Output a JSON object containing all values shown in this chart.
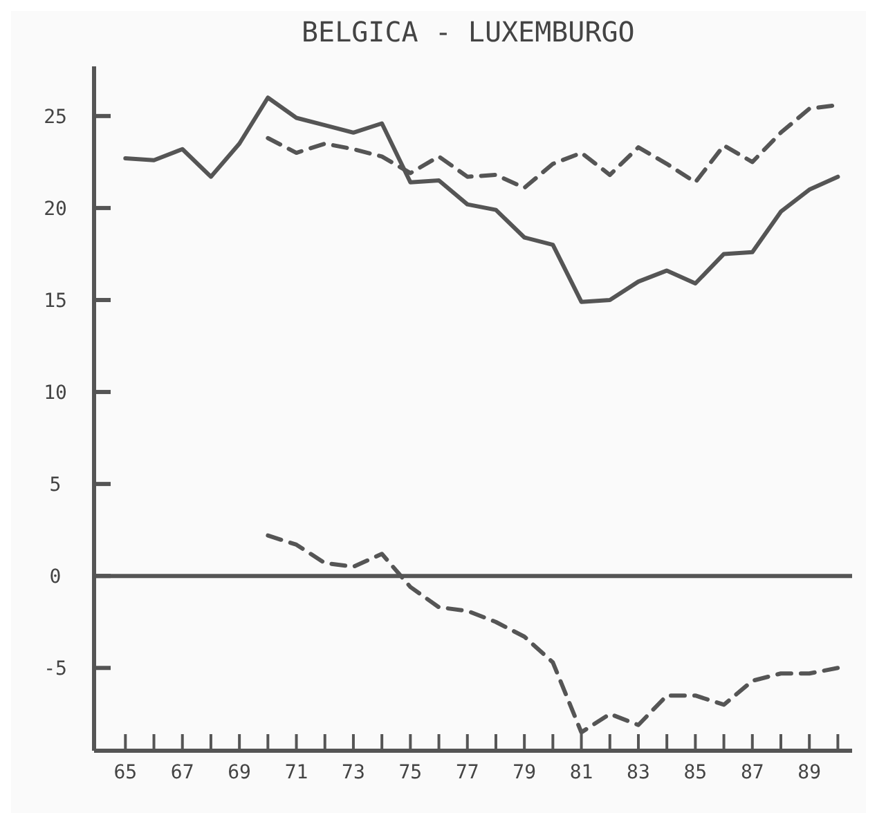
{
  "chart_data": {
    "type": "line",
    "title": "BELGICA - LUXEMBURGO",
    "x": [
      65,
      66,
      67,
      68,
      69,
      70,
      71,
      72,
      73,
      74,
      75,
      76,
      77,
      78,
      79,
      80,
      81,
      82,
      83,
      84,
      85,
      86,
      87,
      88,
      89,
      90
    ],
    "series": [
      {
        "color": "#555555",
        "line_style": "solid",
        "values": [
          22.7,
          22.6,
          23.2,
          21.7,
          23.5,
          26.0,
          24.9,
          24.5,
          24.1,
          24.6,
          21.4,
          21.5,
          20.2,
          19.9,
          18.4,
          18.0,
          14.9,
          15.0,
          16.0,
          16.6,
          15.9,
          17.5,
          17.6,
          19.8,
          21.0,
          21.7
        ]
      },
      {
        "color": "#555555",
        "line_style": "dashed",
        "values": [
          null,
          null,
          null,
          null,
          null,
          23.8,
          23.0,
          23.5,
          23.2,
          22.8,
          21.9,
          22.8,
          21.7,
          21.8,
          21.1,
          22.4,
          23.0,
          21.8,
          23.3,
          22.4,
          21.4,
          23.4,
          22.5,
          24.1,
          25.4,
          25.6
        ]
      },
      {
        "color": "#555555",
        "line_style": "dashed",
        "values": [
          null,
          null,
          null,
          null,
          null,
          2.2,
          1.7,
          0.7,
          0.5,
          1.2,
          -0.6,
          -1.7,
          -1.9,
          -2.5,
          -3.3,
          -4.7,
          -8.5,
          -7.5,
          -8.1,
          -6.5,
          -6.5,
          -7.0,
          -5.7,
          -5.3,
          -5.3,
          -5.0
        ]
      }
    ],
    "xlim": [
      63.9,
      90.5
    ],
    "xticks": [
      65,
      {
        "value": 66,
        "label": null
      },
      67,
      {
        "value": 68,
        "label": null
      },
      69,
      {
        "value": 70,
        "label": null
      },
      71,
      {
        "value": 72,
        "label": null
      },
      73,
      {
        "value": 74,
        "label": null
      },
      75,
      {
        "value": 76,
        "label": null
      },
      77,
      {
        "value": 78,
        "label": null
      },
      79,
      {
        "value": 80,
        "label": null
      },
      81,
      {
        "value": 82,
        "label": null
      },
      83,
      {
        "value": 84,
        "label": null
      },
      85,
      {
        "value": 86,
        "label": null
      },
      87,
      {
        "value": 88,
        "label": null
      },
      89,
      {
        "value": 90,
        "label": null
      }
    ],
    "ylim": [
      -9.5,
      27.7
    ],
    "yticks": [
      -5,
      0,
      5,
      10,
      15,
      20,
      25
    ],
    "ref_lines": [
      {
        "axis": "y",
        "value": 0,
        "color": "#555555",
        "line_style": "solid"
      }
    ],
    "grid": false
  }
}
